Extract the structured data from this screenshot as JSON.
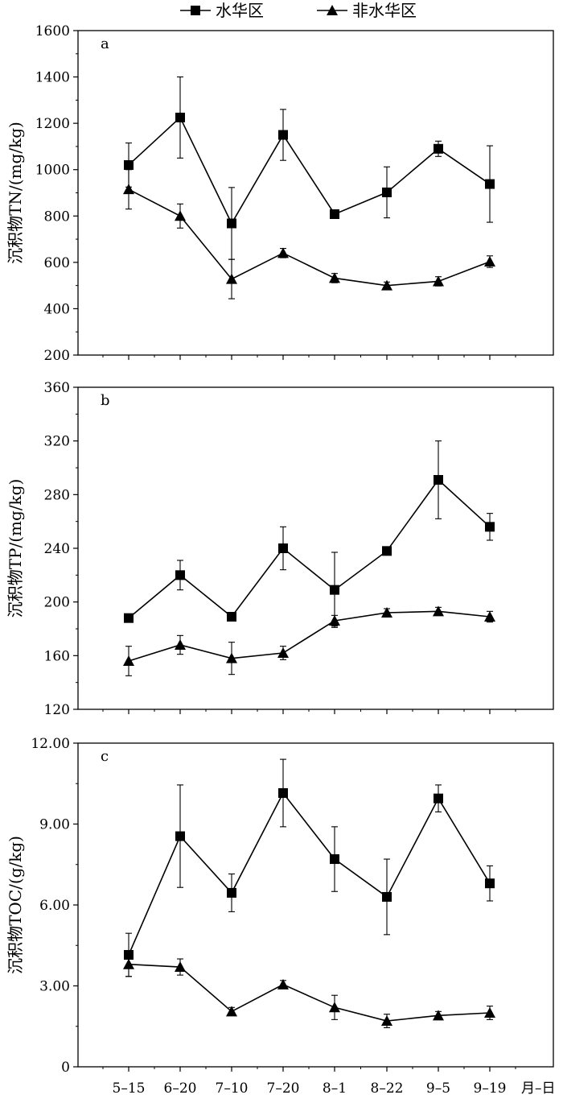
{
  "legend": {
    "series1": "水华区",
    "series2": "非水华区"
  },
  "x_unit_label": "月–日",
  "chart_data": [
    {
      "type": "line",
      "panel": "a",
      "ylabel": "沉积物TN/(mg/kg)",
      "ylim": [
        200,
        1600
      ],
      "yticks": [
        "200",
        "400",
        "600",
        "800",
        "1000",
        "1200",
        "1400",
        "1600"
      ],
      "categories": [
        "5–15",
        "6–20",
        "7–10",
        "7–20",
        "8–1",
        "8–22",
        "9–5",
        "9–19"
      ],
      "series": [
        {
          "name": "水华区",
          "marker": "square",
          "values": [
            1020,
            1225,
            768,
            1150,
            808,
            902,
            1090,
            938
          ],
          "err": [
            95,
            175,
            155,
            110,
            15,
            110,
            33,
            165
          ]
        },
        {
          "name": "非水华区",
          "marker": "triangle",
          "values": [
            915,
            800,
            528,
            640,
            532,
            500,
            518,
            603
          ],
          "err": [
            85,
            52,
            85,
            20,
            20,
            15,
            20,
            25
          ]
        }
      ]
    },
    {
      "type": "line",
      "panel": "b",
      "ylabel": "沉积物TP/(mg/kg)",
      "ylim": [
        120,
        360
      ],
      "yticks": [
        "120",
        "160",
        "200",
        "240",
        "280",
        "320",
        "360"
      ],
      "categories": [
        "5–15",
        "6–20",
        "7–10",
        "7–20",
        "8–1",
        "8–22",
        "9–5",
        "9–19"
      ],
      "series": [
        {
          "name": "水华区",
          "marker": "square",
          "values": [
            188,
            220,
            189,
            240,
            209,
            238,
            291,
            256
          ],
          "err": [
            0,
            11,
            0,
            16,
            28,
            0,
            29,
            10
          ]
        },
        {
          "name": "非水华区",
          "marker": "triangle",
          "values": [
            156,
            168,
            158,
            162,
            186,
            192,
            193,
            189
          ],
          "err": [
            11,
            7,
            12,
            5,
            4,
            3,
            3,
            4
          ]
        }
      ]
    },
    {
      "type": "line",
      "panel": "c",
      "ylabel": "沉积物TOC/(g/kg)",
      "ylim": [
        0,
        12
      ],
      "yticks": [
        "0",
        "3.00",
        "6.00",
        "9.00",
        "12.00"
      ],
      "categories": [
        "5–15",
        "6–20",
        "7–10",
        "7–20",
        "8–1",
        "8–22",
        "9–5",
        "9–19"
      ],
      "series": [
        {
          "name": "水华区",
          "marker": "square",
          "values": [
            4.15,
            8.55,
            6.45,
            10.15,
            7.7,
            6.3,
            9.95,
            6.8
          ],
          "err": [
            0.8,
            1.9,
            0.7,
            1.25,
            1.2,
            1.4,
            0.5,
            0.65
          ]
        },
        {
          "name": "非水华区",
          "marker": "triangle",
          "values": [
            3.8,
            3.7,
            2.05,
            3.05,
            2.2,
            1.7,
            1.9,
            2.0
          ],
          "err": [
            0.45,
            0.3,
            0.15,
            0.15,
            0.45,
            0.25,
            0.15,
            0.25
          ]
        }
      ]
    }
  ]
}
